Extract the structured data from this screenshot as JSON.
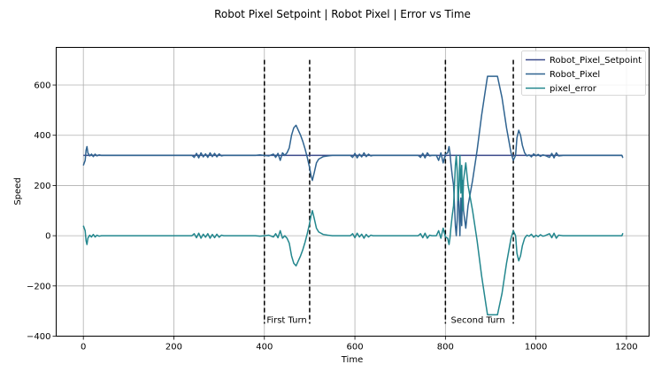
{
  "chart_data": {
    "type": "line",
    "title": "Robot Pixel Setpoint | Robot Pixel | Error vs Time",
    "xlabel": "Time",
    "ylabel": "Speed",
    "xlim": [
      -60,
      1250
    ],
    "ylim": [
      -400,
      750
    ],
    "xticks": [
      0,
      200,
      400,
      600,
      800,
      1000,
      1200
    ],
    "yticks": [
      -400,
      -200,
      0,
      200,
      400,
      600
    ],
    "grid": true,
    "legend": "top-right",
    "series": [
      {
        "name": "Robot_Pixel_Setpoint",
        "color": "#3b4a8a",
        "points": [
          [
            0,
            320
          ],
          [
            1190,
            320
          ]
        ]
      },
      {
        "name": "Robot_Pixel",
        "color": "#2f6390",
        "points": [
          [
            0,
            280
          ],
          [
            2,
            290
          ],
          [
            4,
            300
          ],
          [
            6,
            340
          ],
          [
            8,
            355
          ],
          [
            10,
            330
          ],
          [
            14,
            318
          ],
          [
            18,
            325
          ],
          [
            22,
            315
          ],
          [
            26,
            325
          ],
          [
            30,
            318
          ],
          [
            35,
            322
          ],
          [
            40,
            320
          ],
          [
            240,
            320
          ],
          [
            245,
            312
          ],
          [
            250,
            328
          ],
          [
            255,
            310
          ],
          [
            260,
            330
          ],
          [
            265,
            314
          ],
          [
            270,
            326
          ],
          [
            275,
            312
          ],
          [
            280,
            330
          ],
          [
            285,
            315
          ],
          [
            290,
            328
          ],
          [
            295,
            314
          ],
          [
            300,
            326
          ],
          [
            305,
            318
          ],
          [
            310,
            320
          ],
          [
            380,
            320
          ],
          [
            390,
            322
          ],
          [
            400,
            320
          ],
          [
            410,
            318
          ],
          [
            420,
            325
          ],
          [
            425,
            312
          ],
          [
            430,
            328
          ],
          [
            435,
            300
          ],
          [
            440,
            330
          ],
          [
            445,
            320
          ],
          [
            450,
            330
          ],
          [
            455,
            350
          ],
          [
            460,
            400
          ],
          [
            465,
            430
          ],
          [
            470,
            440
          ],
          [
            475,
            420
          ],
          [
            480,
            400
          ],
          [
            485,
            375
          ],
          [
            490,
            345
          ],
          [
            495,
            310
          ],
          [
            500,
            270
          ],
          [
            503,
            240
          ],
          [
            506,
            220
          ],
          [
            510,
            250
          ],
          [
            515,
            290
          ],
          [
            520,
            305
          ],
          [
            525,
            310
          ],
          [
            530,
            315
          ],
          [
            540,
            318
          ],
          [
            550,
            320
          ],
          [
            590,
            320
          ],
          [
            595,
            312
          ],
          [
            600,
            328
          ],
          [
            605,
            310
          ],
          [
            610,
            325
          ],
          [
            615,
            314
          ],
          [
            620,
            330
          ],
          [
            625,
            315
          ],
          [
            630,
            325
          ],
          [
            635,
            318
          ],
          [
            640,
            320
          ],
          [
            740,
            320
          ],
          [
            745,
            312
          ],
          [
            750,
            328
          ],
          [
            755,
            310
          ],
          [
            760,
            330
          ],
          [
            765,
            318
          ],
          [
            770,
            320
          ],
          [
            780,
            320
          ],
          [
            785,
            300
          ],
          [
            790,
            330
          ],
          [
            795,
            290
          ],
          [
            800,
            325
          ],
          [
            805,
            330
          ],
          [
            808,
            355
          ],
          [
            810,
            330
          ],
          [
            812,
            290
          ],
          [
            815,
            240
          ],
          [
            818,
            200
          ],
          [
            820,
            120
          ],
          [
            822,
            40
          ],
          [
            824,
            0
          ],
          [
            826,
            60
          ],
          [
            828,
            180
          ],
          [
            830,
            120
          ],
          [
            832,
            0
          ],
          [
            834,
            150
          ],
          [
            836,
            40
          ],
          [
            838,
            220
          ],
          [
            840,
            100
          ],
          [
            845,
            30
          ],
          [
            850,
            120
          ],
          [
            860,
            220
          ],
          [
            870,
            340
          ],
          [
            880,
            480
          ],
          [
            890,
            600
          ],
          [
            893,
            635
          ],
          [
            915,
            635
          ],
          [
            925,
            550
          ],
          [
            935,
            430
          ],
          [
            945,
            330
          ],
          [
            950,
            300
          ],
          [
            955,
            320
          ],
          [
            958,
            390
          ],
          [
            962,
            420
          ],
          [
            966,
            400
          ],
          [
            970,
            360
          ],
          [
            975,
            330
          ],
          [
            980,
            318
          ],
          [
            985,
            322
          ],
          [
            990,
            314
          ],
          [
            995,
            326
          ],
          [
            1000,
            318
          ],
          [
            1005,
            324
          ],
          [
            1010,
            316
          ],
          [
            1015,
            322
          ],
          [
            1020,
            320
          ],
          [
            1030,
            312
          ],
          [
            1035,
            328
          ],
          [
            1040,
            310
          ],
          [
            1045,
            330
          ],
          [
            1050,
            318
          ],
          [
            1060,
            320
          ],
          [
            1190,
            320
          ],
          [
            1192,
            310
          ]
        ]
      },
      {
        "name": "pixel_error",
        "color": "#23878e",
        "points": [
          [
            0,
            40
          ],
          [
            2,
            30
          ],
          [
            4,
            20
          ],
          [
            6,
            -20
          ],
          [
            8,
            -35
          ],
          [
            10,
            -10
          ],
          [
            14,
            2
          ],
          [
            18,
            -5
          ],
          [
            22,
            5
          ],
          [
            26,
            -5
          ],
          [
            30,
            2
          ],
          [
            35,
            -2
          ],
          [
            40,
            0
          ],
          [
            240,
            0
          ],
          [
            245,
            8
          ],
          [
            250,
            -8
          ],
          [
            255,
            10
          ],
          [
            260,
            -10
          ],
          [
            265,
            6
          ],
          [
            270,
            -6
          ],
          [
            275,
            8
          ],
          [
            280,
            -10
          ],
          [
            285,
            5
          ],
          [
            290,
            -8
          ],
          [
            295,
            6
          ],
          [
            300,
            -6
          ],
          [
            305,
            2
          ],
          [
            310,
            0
          ],
          [
            380,
            0
          ],
          [
            390,
            -2
          ],
          [
            400,
            0
          ],
          [
            410,
            2
          ],
          [
            420,
            -5
          ],
          [
            425,
            8
          ],
          [
            430,
            -8
          ],
          [
            435,
            20
          ],
          [
            440,
            -10
          ],
          [
            445,
            0
          ],
          [
            450,
            -10
          ],
          [
            455,
            -30
          ],
          [
            460,
            -80
          ],
          [
            465,
            -110
          ],
          [
            470,
            -120
          ],
          [
            475,
            -100
          ],
          [
            480,
            -80
          ],
          [
            485,
            -55
          ],
          [
            490,
            -25
          ],
          [
            495,
            10
          ],
          [
            500,
            50
          ],
          [
            503,
            80
          ],
          [
            506,
            100
          ],
          [
            510,
            70
          ],
          [
            515,
            30
          ],
          [
            520,
            15
          ],
          [
            525,
            10
          ],
          [
            530,
            5
          ],
          [
            540,
            2
          ],
          [
            550,
            0
          ],
          [
            590,
            0
          ],
          [
            595,
            8
          ],
          [
            600,
            -8
          ],
          [
            605,
            10
          ],
          [
            610,
            -5
          ],
          [
            615,
            6
          ],
          [
            620,
            -10
          ],
          [
            625,
            5
          ],
          [
            630,
            -5
          ],
          [
            635,
            2
          ],
          [
            640,
            0
          ],
          [
            740,
            0
          ],
          [
            745,
            8
          ],
          [
            750,
            -8
          ],
          [
            755,
            10
          ],
          [
            760,
            -10
          ],
          [
            765,
            2
          ],
          [
            770,
            0
          ],
          [
            780,
            0
          ],
          [
            785,
            20
          ],
          [
            790,
            -10
          ],
          [
            795,
            30
          ],
          [
            800,
            -5
          ],
          [
            805,
            -10
          ],
          [
            808,
            -35
          ],
          [
            810,
            -10
          ],
          [
            812,
            30
          ],
          [
            815,
            80
          ],
          [
            818,
            120
          ],
          [
            820,
            200
          ],
          [
            822,
            280
          ],
          [
            824,
            320
          ],
          [
            826,
            260
          ],
          [
            828,
            140
          ],
          [
            830,
            200
          ],
          [
            832,
            320
          ],
          [
            834,
            170
          ],
          [
            836,
            280
          ],
          [
            838,
            100
          ],
          [
            840,
            220
          ],
          [
            845,
            290
          ],
          [
            850,
            200
          ],
          [
            860,
            100
          ],
          [
            870,
            -20
          ],
          [
            880,
            -160
          ],
          [
            890,
            -280
          ],
          [
            893,
            -315
          ],
          [
            915,
            -315
          ],
          [
            925,
            -230
          ],
          [
            935,
            -110
          ],
          [
            945,
            -10
          ],
          [
            950,
            20
          ],
          [
            955,
            0
          ],
          [
            958,
            -70
          ],
          [
            962,
            -100
          ],
          [
            966,
            -80
          ],
          [
            970,
            -40
          ],
          [
            975,
            -10
          ],
          [
            980,
            2
          ],
          [
            985,
            -2
          ],
          [
            990,
            6
          ],
          [
            995,
            -6
          ],
          [
            1000,
            2
          ],
          [
            1005,
            -4
          ],
          [
            1010,
            4
          ],
          [
            1015,
            -2
          ],
          [
            1020,
            0
          ],
          [
            1030,
            8
          ],
          [
            1035,
            -8
          ],
          [
            1040,
            10
          ],
          [
            1045,
            -10
          ],
          [
            1050,
            2
          ],
          [
            1060,
            0
          ],
          [
            1190,
            0
          ],
          [
            1192,
            10
          ]
        ]
      }
    ],
    "vlines": [
      400,
      500,
      800,
      950
    ],
    "annotations": [
      {
        "text": "First Turn",
        "x": 405,
        "y": -335
      },
      {
        "text": "Second Turn",
        "x": 812,
        "y": -335
      }
    ]
  }
}
